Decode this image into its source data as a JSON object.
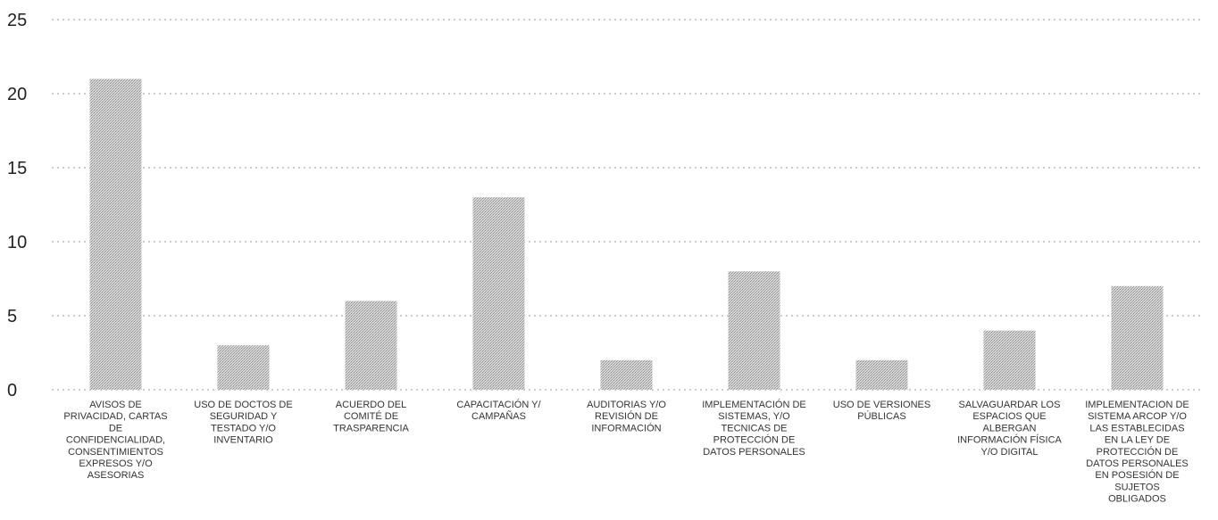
{
  "chart_data": {
    "type": "bar",
    "title": "",
    "xlabel": "",
    "ylabel": "",
    "ylim": [
      0,
      25
    ],
    "yticks": [
      0,
      5,
      10,
      15,
      20,
      25
    ],
    "grid": true,
    "bar_color": "#c8c8c8",
    "categories": [
      [
        "AVISOS DE",
        "PRIVACIDAD, CARTAS",
        "DE",
        "CONFIDENCIALIDAD,",
        "CONSENTIMIENTOS",
        "EXPRESOS Y/O",
        "ASESORIAS"
      ],
      [
        "USO DE DOCTOS DE",
        "SEGURIDAD Y",
        "TESTADO Y/O",
        "INVENTARIO"
      ],
      [
        "ACUERDO DEL",
        "COMITÉ DE",
        "TRASPARENCIA"
      ],
      [
        "CAPACITACIÓN Y/",
        "CAMPAÑAS"
      ],
      [
        "AUDITORIAS Y/O",
        "REVISIÓN DE",
        "INFORMACIÓN"
      ],
      [
        "IMPLEMENTACIÓN DE",
        "SISTEMAS, Y/O",
        "TECNICAS DE",
        "PROTECCIÓN DE",
        "DATOS PERSONALES"
      ],
      [
        "USO DE VERSIONES",
        "PÚBLICAS"
      ],
      [
        "SALVAGUARDAR LOS",
        "ESPACIOS QUE",
        "ALBERGAN",
        "INFORMACIÓN FÍSICA",
        "Y/O DIGITAL"
      ],
      [
        "IMPLEMENTACION DE",
        "SISTEMA ARCOP Y/O",
        "LAS ESTABLECIDAS",
        "EN LA LEY DE",
        "PROTECCIÓN DE",
        "DATOS PERSONALES",
        "EN POSESIÓN DE",
        "SUJETOS",
        "OBLIGADOS"
      ]
    ],
    "values": [
      21,
      3,
      6,
      13,
      2,
      8,
      2,
      4,
      7
    ]
  }
}
